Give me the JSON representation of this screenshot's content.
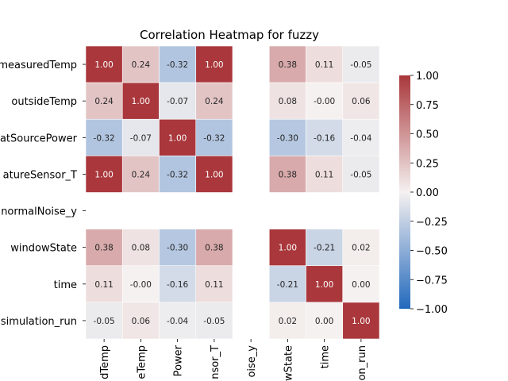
{
  "chart_data": {
    "type": "heatmap",
    "title": "Correlation Heatmap for fuzzy",
    "row_labels": [
      "measuredTemp",
      "outsideTemp",
      "heatSourcePower",
      "temperatureSensor_T",
      "normalNoise_y",
      "windowState",
      "time",
      "simulation_run"
    ],
    "row_labels_visible": [
      "measuredTemp",
      "outsideTemp",
      "atSourcePower",
      "atureSensor_T",
      "normalNoise_y",
      "windowState",
      "time",
      "simulation_run"
    ],
    "col_labels_visible": [
      "dTemp",
      "eTemp",
      "Power",
      "nsor_T",
      "oise_y",
      "wState",
      "time",
      "on_run"
    ],
    "values": [
      [
        1.0,
        0.24,
        -0.32,
        1.0,
        null,
        0.38,
        0.11,
        -0.05
      ],
      [
        0.24,
        1.0,
        -0.07,
        0.24,
        null,
        0.08,
        -0.0,
        0.06
      ],
      [
        -0.32,
        -0.07,
        1.0,
        -0.32,
        null,
        -0.3,
        -0.16,
        -0.04
      ],
      [
        1.0,
        0.24,
        -0.32,
        1.0,
        null,
        0.38,
        0.11,
        -0.05
      ],
      [
        null,
        null,
        null,
        null,
        null,
        null,
        null,
        null
      ],
      [
        0.38,
        0.08,
        -0.3,
        0.38,
        null,
        1.0,
        -0.21,
        0.02
      ],
      [
        0.11,
        -0.0,
        -0.16,
        0.11,
        null,
        -0.21,
        1.0,
        0.0
      ],
      [
        -0.05,
        0.06,
        -0.04,
        -0.05,
        null,
        0.02,
        0.0,
        1.0
      ]
    ],
    "value_labels": [
      [
        "1.00",
        "0.24",
        "-0.32",
        "1.00",
        "",
        "0.38",
        "0.11",
        "-0.05"
      ],
      [
        "0.24",
        "1.00",
        "-0.07",
        "0.24",
        "",
        "0.08",
        "-0.00",
        "0.06"
      ],
      [
        "-0.32",
        "-0.07",
        "1.00",
        "-0.32",
        "",
        "-0.30",
        "-0.16",
        "-0.04"
      ],
      [
        "1.00",
        "0.24",
        "-0.32",
        "1.00",
        "",
        "0.38",
        "0.11",
        "-0.05"
      ],
      [
        "",
        "",
        "",
        "",
        "",
        "",
        "",
        ""
      ],
      [
        "0.38",
        "0.08",
        "-0.30",
        "0.38",
        "",
        "1.00",
        "-0.21",
        "0.02"
      ],
      [
        "0.11",
        "-0.00",
        "-0.16",
        "0.11",
        "",
        "-0.21",
        "1.00",
        "0.00"
      ],
      [
        "-0.05",
        "0.06",
        "-0.04",
        "-0.05",
        "",
        "0.02",
        "0.00",
        "1.00"
      ]
    ],
    "colorbar": {
      "min": -1.0,
      "max": 1.0,
      "ticks": [
        1.0,
        0.75,
        0.5,
        0.25,
        0.0,
        -0.25,
        -0.5,
        -0.75,
        -1.0
      ],
      "tick_labels": [
        "1.00",
        "0.75",
        "0.50",
        "0.25",
        "0.00",
        "−0.25",
        "−0.50",
        "−0.75",
        "−1.00"
      ]
    },
    "colormap": "vlag",
    "colors": {
      "low": "#2369bd",
      "mid": "#f5f1f0",
      "high": "#a9373b"
    }
  }
}
